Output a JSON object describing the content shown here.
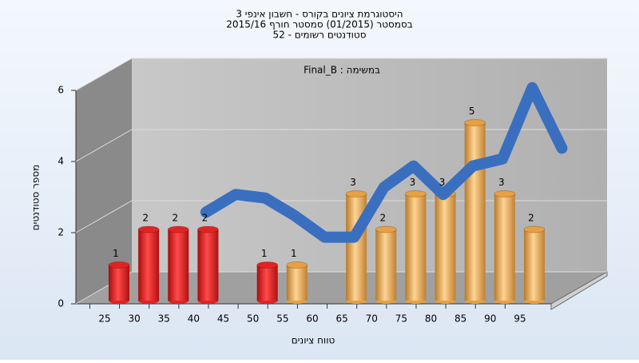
{
  "chart_data": {
    "type": "bar",
    "title": [
      "היסטוגרמת ציונים בקורס - חשבון אינפי 3",
      "בסמסטר  (01/2015)  סמסטר חורף 2015/16",
      "52 - סטודנטים רשומים"
    ],
    "subtitle": "Final_B : במשימה",
    "y_label": "מספר סטודנטים",
    "x_label": "טווח ציונים",
    "categories": [
      "25",
      "30",
      "35",
      "40",
      "45",
      "50",
      "55",
      "60",
      "65",
      "70",
      "75",
      "80",
      "85",
      "90",
      "95"
    ],
    "series": [
      {
        "type": "bar",
        "values": [
          1,
          2,
          2,
          2,
          null,
          1,
          1,
          null,
          3,
          2,
          3,
          3,
          5,
          3,
          2
        ],
        "colors": [
          "#e52222",
          "#e52222",
          "#e52222",
          "#e52222",
          null,
          "#e52222",
          "#e8a040",
          null,
          "#e8a040",
          "#e8a040",
          "#e8a040",
          "#e8a040",
          "#e8a040",
          "#e8a040",
          "#e8a040"
        ]
      },
      {
        "type": "line",
        "color": "#3a6fc0",
        "values": [
          null,
          null,
          1.9,
          2.4,
          2.3,
          1.8,
          1.2,
          1.2,
          2.6,
          3.2,
          2.4,
          3.2,
          3.4,
          5.4,
          3.7
        ]
      }
    ],
    "ylim": [
      0,
      6
    ],
    "yticks": [
      0,
      2,
      4,
      6
    ],
    "grid": true
  }
}
